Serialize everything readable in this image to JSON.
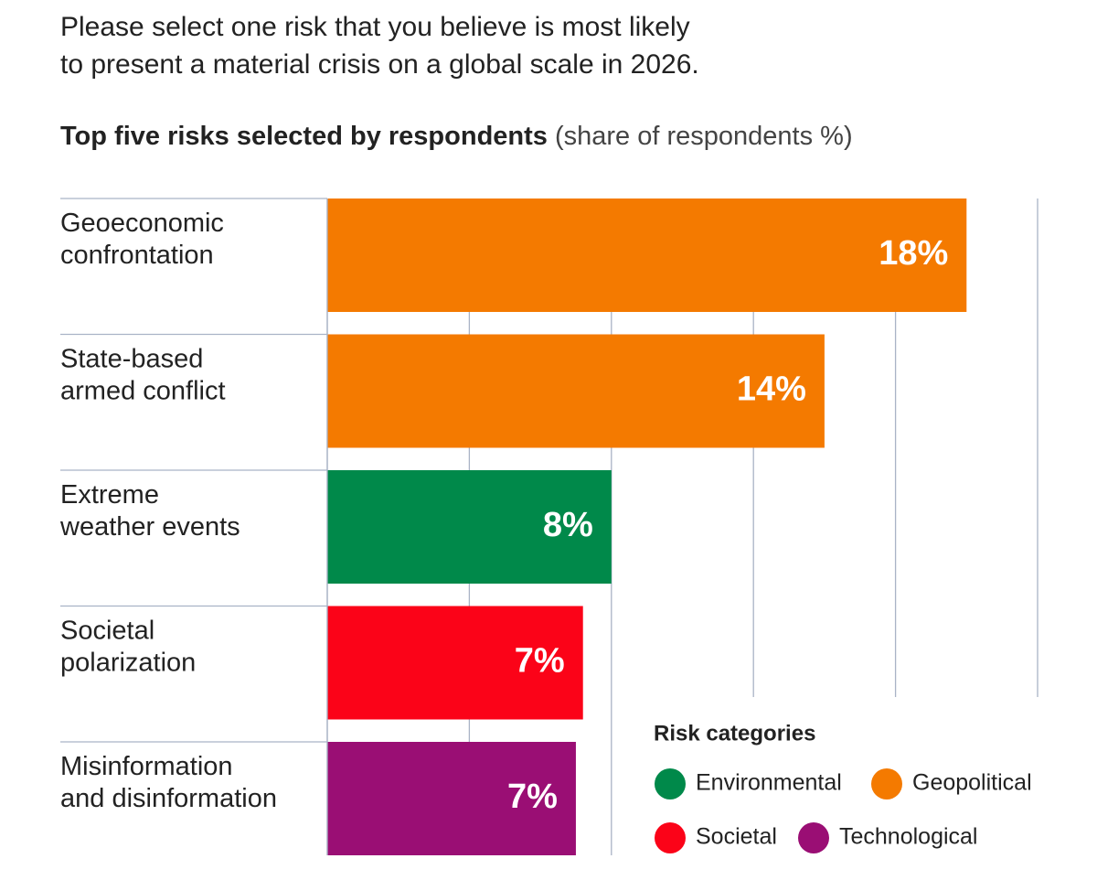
{
  "chart_data": {
    "type": "bar",
    "orientation": "horizontal",
    "title": "Please select one risk that you believe is most likely\nto present a material crisis on a global scale in 2026.",
    "subtitle": "Top five risks selected by respondents",
    "unit_note": "(share of respondents %)",
    "categories": [
      "Geoeconomic\nconfrontation",
      "State-based\narmed conflict",
      "Extreme\nweather events",
      "Societal\npolarization",
      "Misinformation\nand disinformation"
    ],
    "values": [
      18,
      14,
      8,
      7.2,
      7
    ],
    "value_labels": [
      "18%",
      "14%",
      "8%",
      "7%",
      "7%"
    ],
    "colors": [
      "#f47a00",
      "#f47a00",
      "#00894a",
      "#fb0318",
      "#9a0e74"
    ],
    "xlim": [
      0,
      20
    ],
    "xticks": [
      0,
      4,
      8,
      12,
      16,
      20
    ],
    "grid": true,
    "legend": {
      "title": "Risk categories",
      "items": [
        {
          "name": "Environmental",
          "color": "#00894a"
        },
        {
          "name": "Geopolitical",
          "color": "#f47a00"
        },
        {
          "name": "Societal",
          "color": "#fb0318"
        },
        {
          "name": "Technological",
          "color": "#9a0e74"
        }
      ]
    }
  }
}
